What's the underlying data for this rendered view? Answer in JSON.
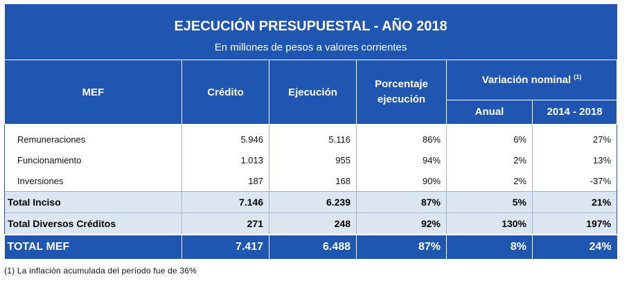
{
  "title": "EJECUCIÓN PRESUPUESTAL - AÑO 2018",
  "subtitle": "En millones de pesos a valores corrientes",
  "headers": {
    "mef": "MEF",
    "credito": "Crédito",
    "ejecucion": "Ejecución",
    "porcentaje_line1": "Porcentaje",
    "porcentaje_line2": "ejecución",
    "variacion": "Variación nominal",
    "variacion_sup": "(1)",
    "anual": "Anual",
    "periodo": "2014 - 2018"
  },
  "rows": [
    {
      "label": "Remuneraciones",
      "credito": "5.946",
      "ejecucion": "5.116",
      "porcentaje": "86%",
      "anual": "6%",
      "periodo": "27%"
    },
    {
      "label": "Funcionamiento",
      "credito": "1.013",
      "ejecucion": "955",
      "porcentaje": "94%",
      "anual": "2%",
      "periodo": "13%"
    },
    {
      "label": "Inversiones",
      "credito": "187",
      "ejecucion": "168",
      "porcentaje": "90%",
      "anual": "2%",
      "periodo": "-37%"
    }
  ],
  "totals": [
    {
      "label": "Total Inciso",
      "credito": "7.146",
      "ejecucion": "6.239",
      "porcentaje": "87%",
      "anual": "5%",
      "periodo": "21%"
    },
    {
      "label": "Total Diversos Créditos",
      "credito": "271",
      "ejecucion": "248",
      "porcentaje": "92%",
      "anual": "130%",
      "periodo": "197%"
    }
  ],
  "total_mef": {
    "label": "TOTAL MEF",
    "credito": "7.417",
    "ejecucion": "6.488",
    "porcentaje": "87%",
    "anual": "8%",
    "periodo": "24%"
  },
  "footnote": "(1) La inflación acumulada del período fue de 36%"
}
